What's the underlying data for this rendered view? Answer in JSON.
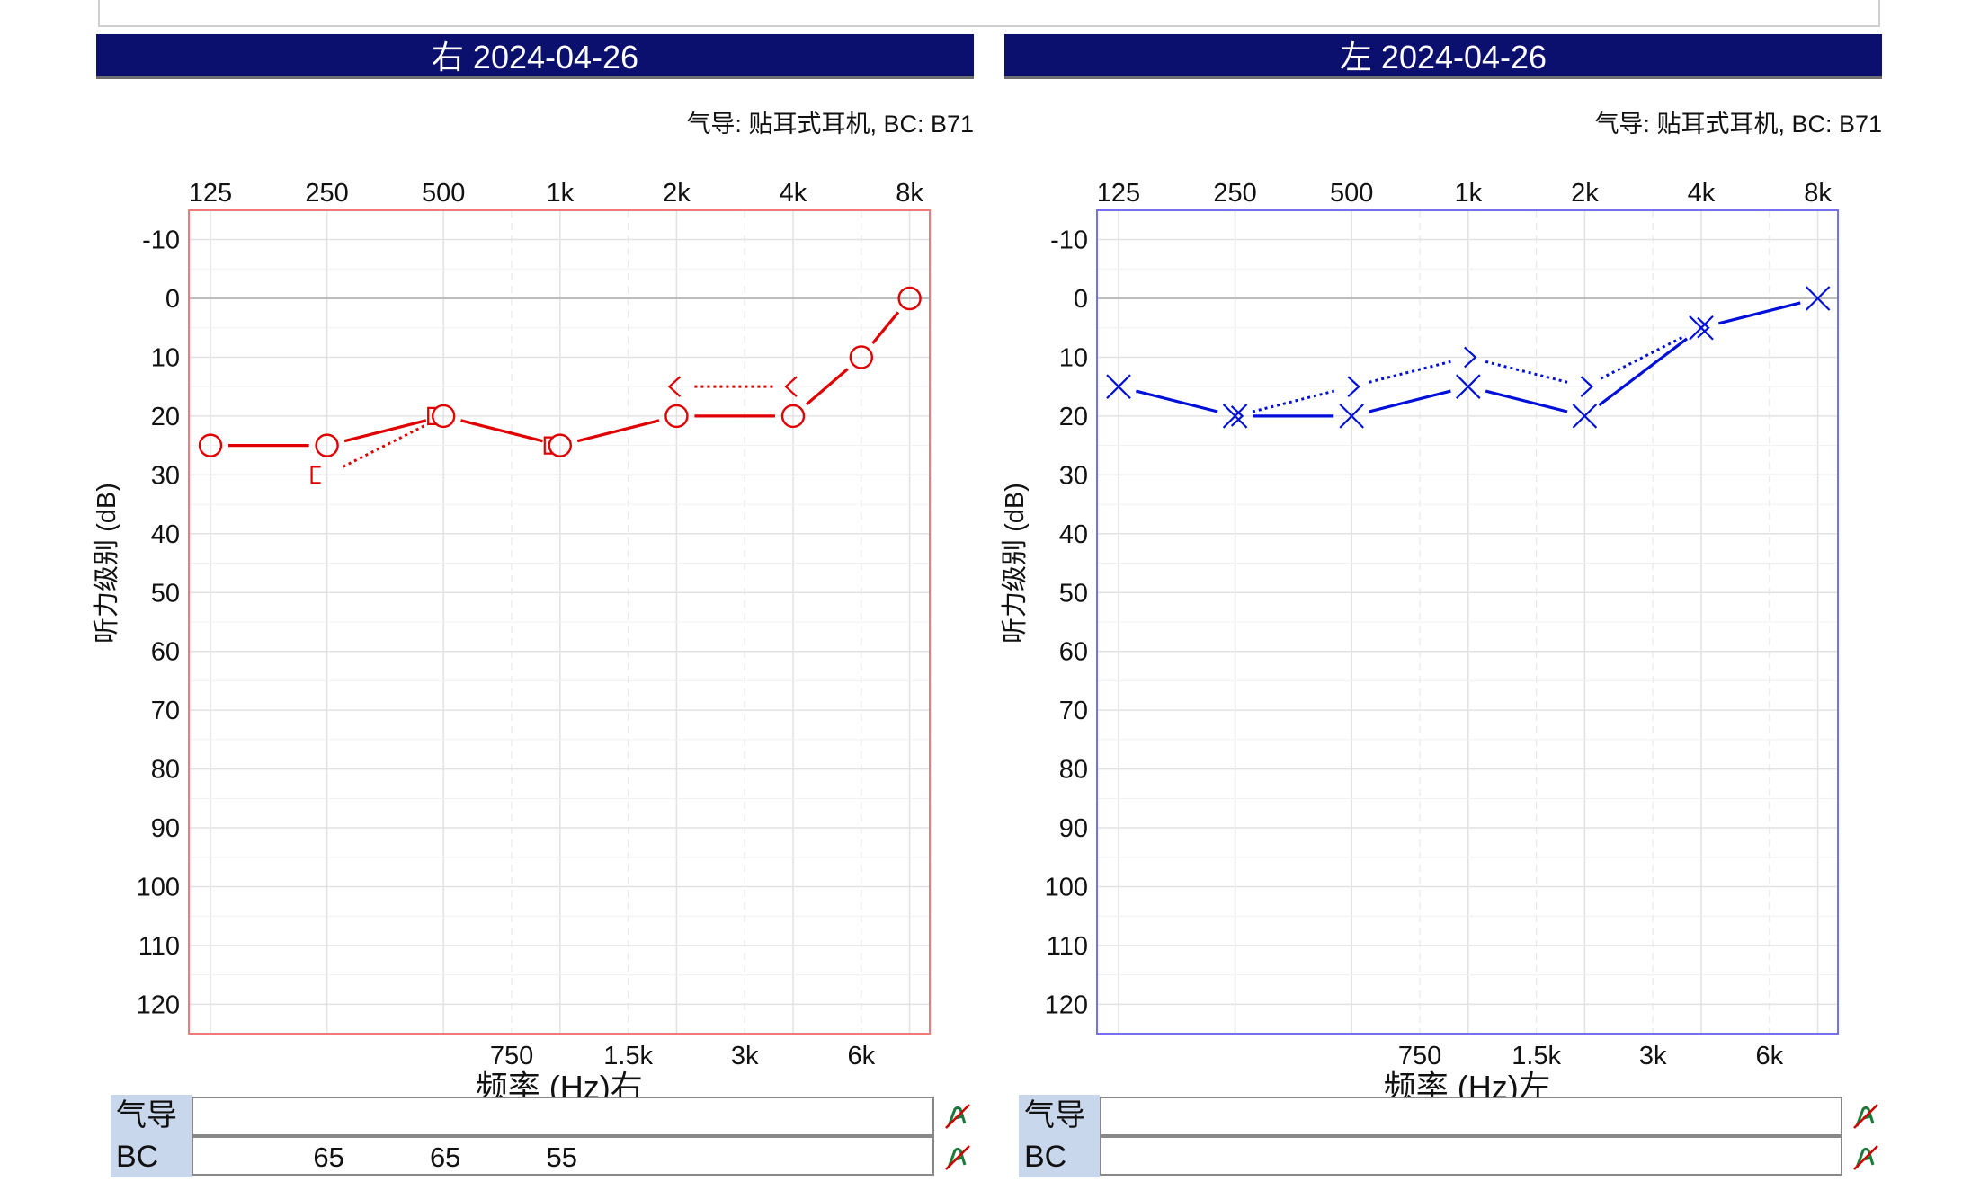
{
  "panels": [
    {
      "id": "right",
      "header": "右 2024-04-26",
      "transducer": "气导: 贴耳式耳机, BC: B71",
      "colors": {
        "main": "#e00000",
        "frame": "#f07a7a"
      },
      "chart_data": {
        "type": "line",
        "title": "右 2024-04-26",
        "xlabel": "频率 (Hz)右",
        "ylabel": "听力级别 (dB)",
        "x_scale": "log2",
        "x_ticks_top": [
          "125",
          "250",
          "500",
          "1k",
          "2k",
          "4k",
          "8k"
        ],
        "x_ticks_top_hz": [
          125,
          250,
          500,
          1000,
          2000,
          4000,
          8000
        ],
        "x_ticks_bottom": [
          "750",
          "1.5k",
          "3k",
          "6k"
        ],
        "x_ticks_bottom_hz": [
          750,
          1500,
          3000,
          6000
        ],
        "ylim": [
          -15,
          125
        ],
        "y_ticks": [
          -10,
          0,
          10,
          20,
          30,
          40,
          50,
          60,
          70,
          80,
          90,
          100,
          110,
          120
        ],
        "grid": true,
        "series": [
          {
            "name": "气导",
            "symbol": "circle",
            "line": "solid",
            "x": [
              125,
              250,
              500,
              1000,
              2000,
              4000,
              6000,
              8000
            ],
            "y": [
              25,
              25,
              20,
              25,
              20,
              20,
              10,
              0
            ]
          },
          {
            "name": "BC",
            "symbol": "bracket-left",
            "line": "dotted",
            "x": [
              250,
              500,
              1000
            ],
            "y": [
              30,
              20,
              25
            ]
          },
          {
            "name": "BC",
            "symbol": "chevron-left",
            "line": "dotted",
            "x": [
              2000,
              4000
            ],
            "y": [
              15,
              15
            ]
          }
        ]
      },
      "bottom_table": {
        "labels": [
          "气导",
          "BC"
        ],
        "ac_values": [],
        "bc_values": [
          {
            "hz": 250,
            "text": "65"
          },
          {
            "hz": 500,
            "text": "65"
          },
          {
            "hz": 1000,
            "text": "55"
          }
        ]
      }
    },
    {
      "id": "left",
      "header": "左 2024-04-26",
      "transducer": "气导: 贴耳式耳机, BC: B71",
      "colors": {
        "main": "#0010d8",
        "frame": "#7272ee"
      },
      "chart_data": {
        "type": "line",
        "title": "左 2024-04-26",
        "xlabel": "频率 (Hz)左",
        "ylabel": "听力级别 (dB)",
        "x_scale": "log2",
        "x_ticks_top": [
          "125",
          "250",
          "500",
          "1k",
          "2k",
          "4k",
          "8k"
        ],
        "x_ticks_top_hz": [
          125,
          250,
          500,
          1000,
          2000,
          4000,
          8000
        ],
        "x_ticks_bottom": [
          "750",
          "1.5k",
          "3k",
          "6k"
        ],
        "x_ticks_bottom_hz": [
          750,
          1500,
          3000,
          6000
        ],
        "ylim": [
          -15,
          125
        ],
        "y_ticks": [
          -10,
          0,
          10,
          20,
          30,
          40,
          50,
          60,
          70,
          80,
          90,
          100,
          110,
          120
        ],
        "grid": true,
        "series": [
          {
            "name": "气导",
            "symbol": "cross",
            "line": "solid",
            "x": [
              125,
              250,
              500,
              1000,
              2000,
              4000,
              8000
            ],
            "y": [
              15,
              20,
              20,
              15,
              20,
              5,
              0
            ]
          },
          {
            "name": "BC",
            "symbol": "chevron-right",
            "line": "dotted",
            "x": [
              250,
              500,
              1000,
              2000,
              4000
            ],
            "y": [
              20,
              15,
              10,
              15,
              5
            ]
          }
        ]
      },
      "bottom_table": {
        "labels": [
          "气导",
          "BC"
        ],
        "ac_values": [],
        "bc_values": []
      }
    }
  ]
}
